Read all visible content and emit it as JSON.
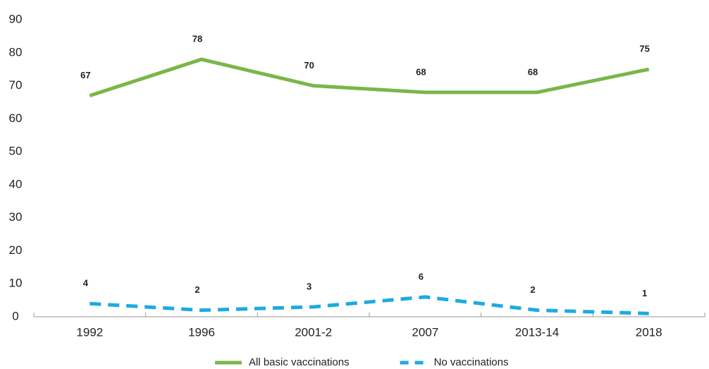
{
  "chart_data": {
    "type": "line",
    "categories": [
      "1992",
      "1996",
      "2001-2",
      "2007",
      "2013-14",
      "2018"
    ],
    "series": [
      {
        "name": "All basic vaccinations",
        "color": "#7ab648",
        "dash": false,
        "values": [
          67,
          78,
          70,
          68,
          68,
          75
        ]
      },
      {
        "name": "No vaccinations",
        "color": "#1cabe2",
        "dash": true,
        "values": [
          4,
          2,
          3,
          6,
          2,
          1
        ]
      }
    ],
    "ylim": [
      0,
      90
    ],
    "yticks": [
      0,
      10,
      20,
      30,
      40,
      50,
      60,
      70,
      80,
      90
    ],
    "grid": false,
    "legend": "bottom"
  }
}
